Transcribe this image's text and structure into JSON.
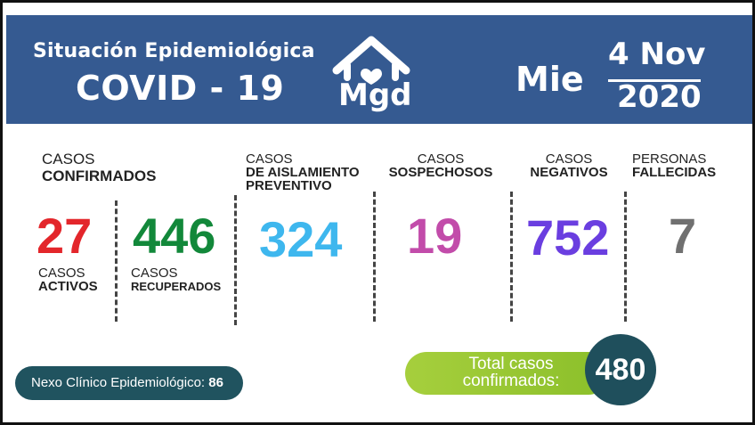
{
  "header": {
    "subtitle": "Situación Epidemiológica",
    "title": "COVID - 19",
    "logo_text": "Mgd",
    "day": "Mie",
    "date_top": "4 Nov",
    "date_bottom": "2020"
  },
  "stats": {
    "confirmados": {
      "line1": "CASOS",
      "line2": "CONFIRMADOS"
    },
    "activos": {
      "value": "27",
      "line1": "CASOS",
      "line2": "ACTIVOS",
      "color": "#e3262b"
    },
    "recuperados": {
      "value": "446",
      "line1": "CASOS",
      "line2": "RECUPERADOS",
      "color": "#12883a"
    },
    "aislamiento": {
      "value": "324",
      "line1": "CASOS",
      "line2": "DE AISLAMIENTO",
      "line3": "PREVENTIVO",
      "color": "#3eb7ee"
    },
    "sospechosos": {
      "value": "19",
      "line1": "CASOS",
      "line2": "SOSPECHOSOS",
      "color": "#c24caa"
    },
    "negativos": {
      "value": "752",
      "line1": "CASOS",
      "line2": "NEGATIVOS",
      "color": "#6a3ee0"
    },
    "fallecidas": {
      "value": "7",
      "line1": "PERSONAS",
      "line2": "FALLECIDAS",
      "color": "#707070"
    }
  },
  "nexo": {
    "label": "Nexo Clínico Epidemiológico:",
    "value": "86"
  },
  "total": {
    "line1": "Total casos",
    "line2": "confirmados:",
    "value": "480"
  },
  "colors": {
    "header_bg": "#355a91",
    "total_pill": "#a6cf3d",
    "total_circle": "#1f4f5c",
    "nexo_bg": "#20535f"
  },
  "icons": {
    "logo": "house-heart-icon"
  }
}
